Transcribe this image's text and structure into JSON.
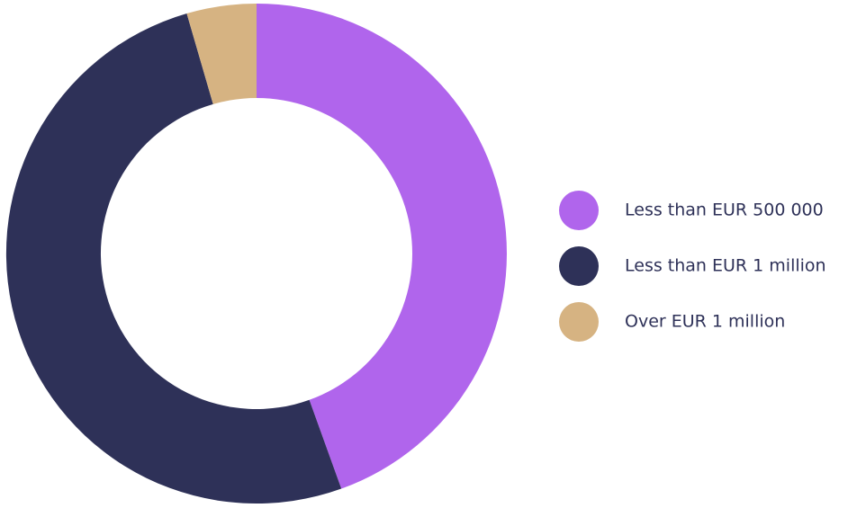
{
  "chart_data": {
    "type": "pie",
    "variant": "donut",
    "title": "",
    "legend": "right",
    "series": [
      {
        "name": "",
        "categories": [
          "Less than EUR 500 000",
          "Less than EUR 1 million",
          "Over EUR 1 million"
        ],
        "values": [
          44.5,
          51.0,
          4.5
        ]
      }
    ],
    "colors": [
      "#b065ec",
      "#2e3158",
      "#d6b382"
    ]
  }
}
